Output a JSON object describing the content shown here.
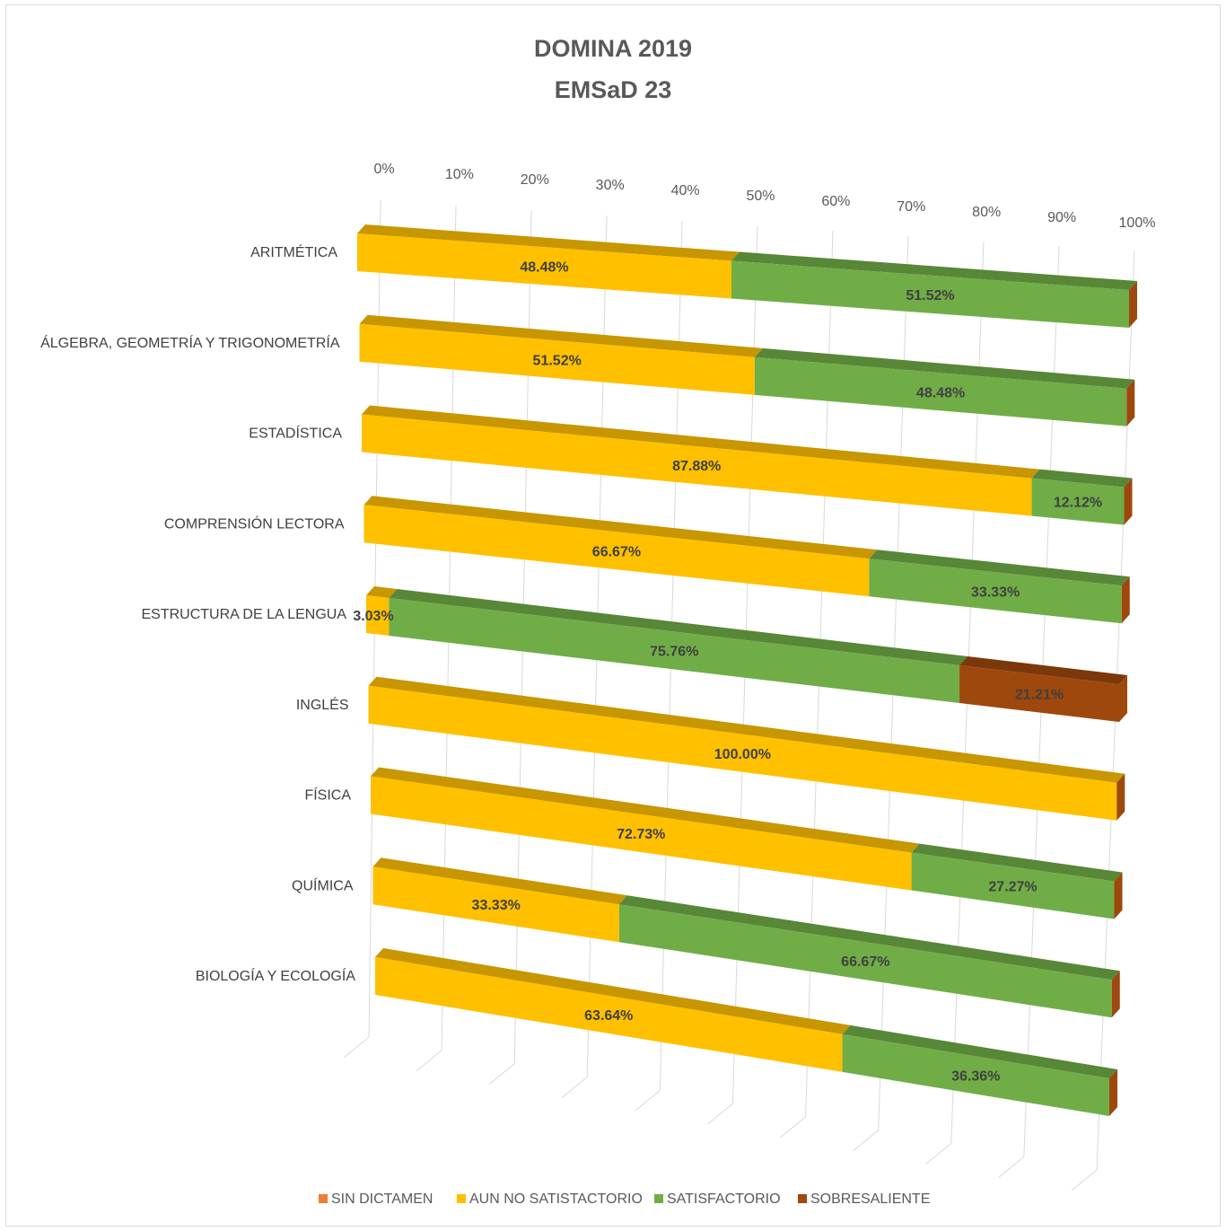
{
  "chart_data": {
    "type": "bar",
    "orientation": "horizontal-stacked-100-3d",
    "title": "DOMINA 2019",
    "subtitle": "EMSaD 23",
    "categories": [
      "ARITMÉTICA",
      "ÁLGEBRA, GEOMETRÍA Y TRIGONOMETRÍA",
      "ESTADÍSTICA",
      "COMPRENSIÓN LECTORA",
      "ESTRUCTURA DE LA LENGUA",
      "INGLÉS",
      "FÍSICA",
      "QUÍMICA",
      "BIOLOGÍA Y ECOLOGÍA"
    ],
    "series": [
      {
        "name": "SIN DICTAMEN",
        "color": "#ED7D31",
        "values": [
          0,
          0,
          0,
          0,
          0,
          0,
          0,
          0,
          0
        ]
      },
      {
        "name": "AUN NO SATISTACTORIO",
        "color": "#FFC000",
        "values": [
          48.48,
          51.52,
          87.88,
          66.67,
          3.03,
          100.0,
          72.73,
          33.33,
          63.64
        ]
      },
      {
        "name": "SATISFACTORIO",
        "color": "#70AD47",
        "values": [
          51.52,
          48.48,
          12.12,
          33.33,
          75.76,
          0,
          27.27,
          66.67,
          36.36
        ]
      },
      {
        "name": "SOBRESALIENTE",
        "color": "#9E480E",
        "values": [
          0,
          0,
          0,
          0,
          21.21,
          0,
          0,
          0,
          0
        ]
      }
    ],
    "data_labels": [
      [
        "48.48%",
        "51.52%"
      ],
      [
        "51.52%",
        "48.48%"
      ],
      [
        "87.88%",
        "12.12%"
      ],
      [
        "66.67%",
        "33.33%"
      ],
      [
        "3.03%",
        "75.76%",
        "21.21%"
      ],
      [
        "100.00%"
      ],
      [
        "72.73%",
        "27.27%"
      ],
      [
        "33.33%",
        "66.67%"
      ],
      [
        "63.64%",
        "36.36%"
      ]
    ],
    "x_ticks": [
      "0%",
      "10%",
      "20%",
      "30%",
      "40%",
      "50%",
      "60%",
      "70%",
      "80%",
      "90%",
      "100%"
    ],
    "xlim": [
      0,
      100
    ],
    "legend_position": "bottom",
    "grid": true
  }
}
